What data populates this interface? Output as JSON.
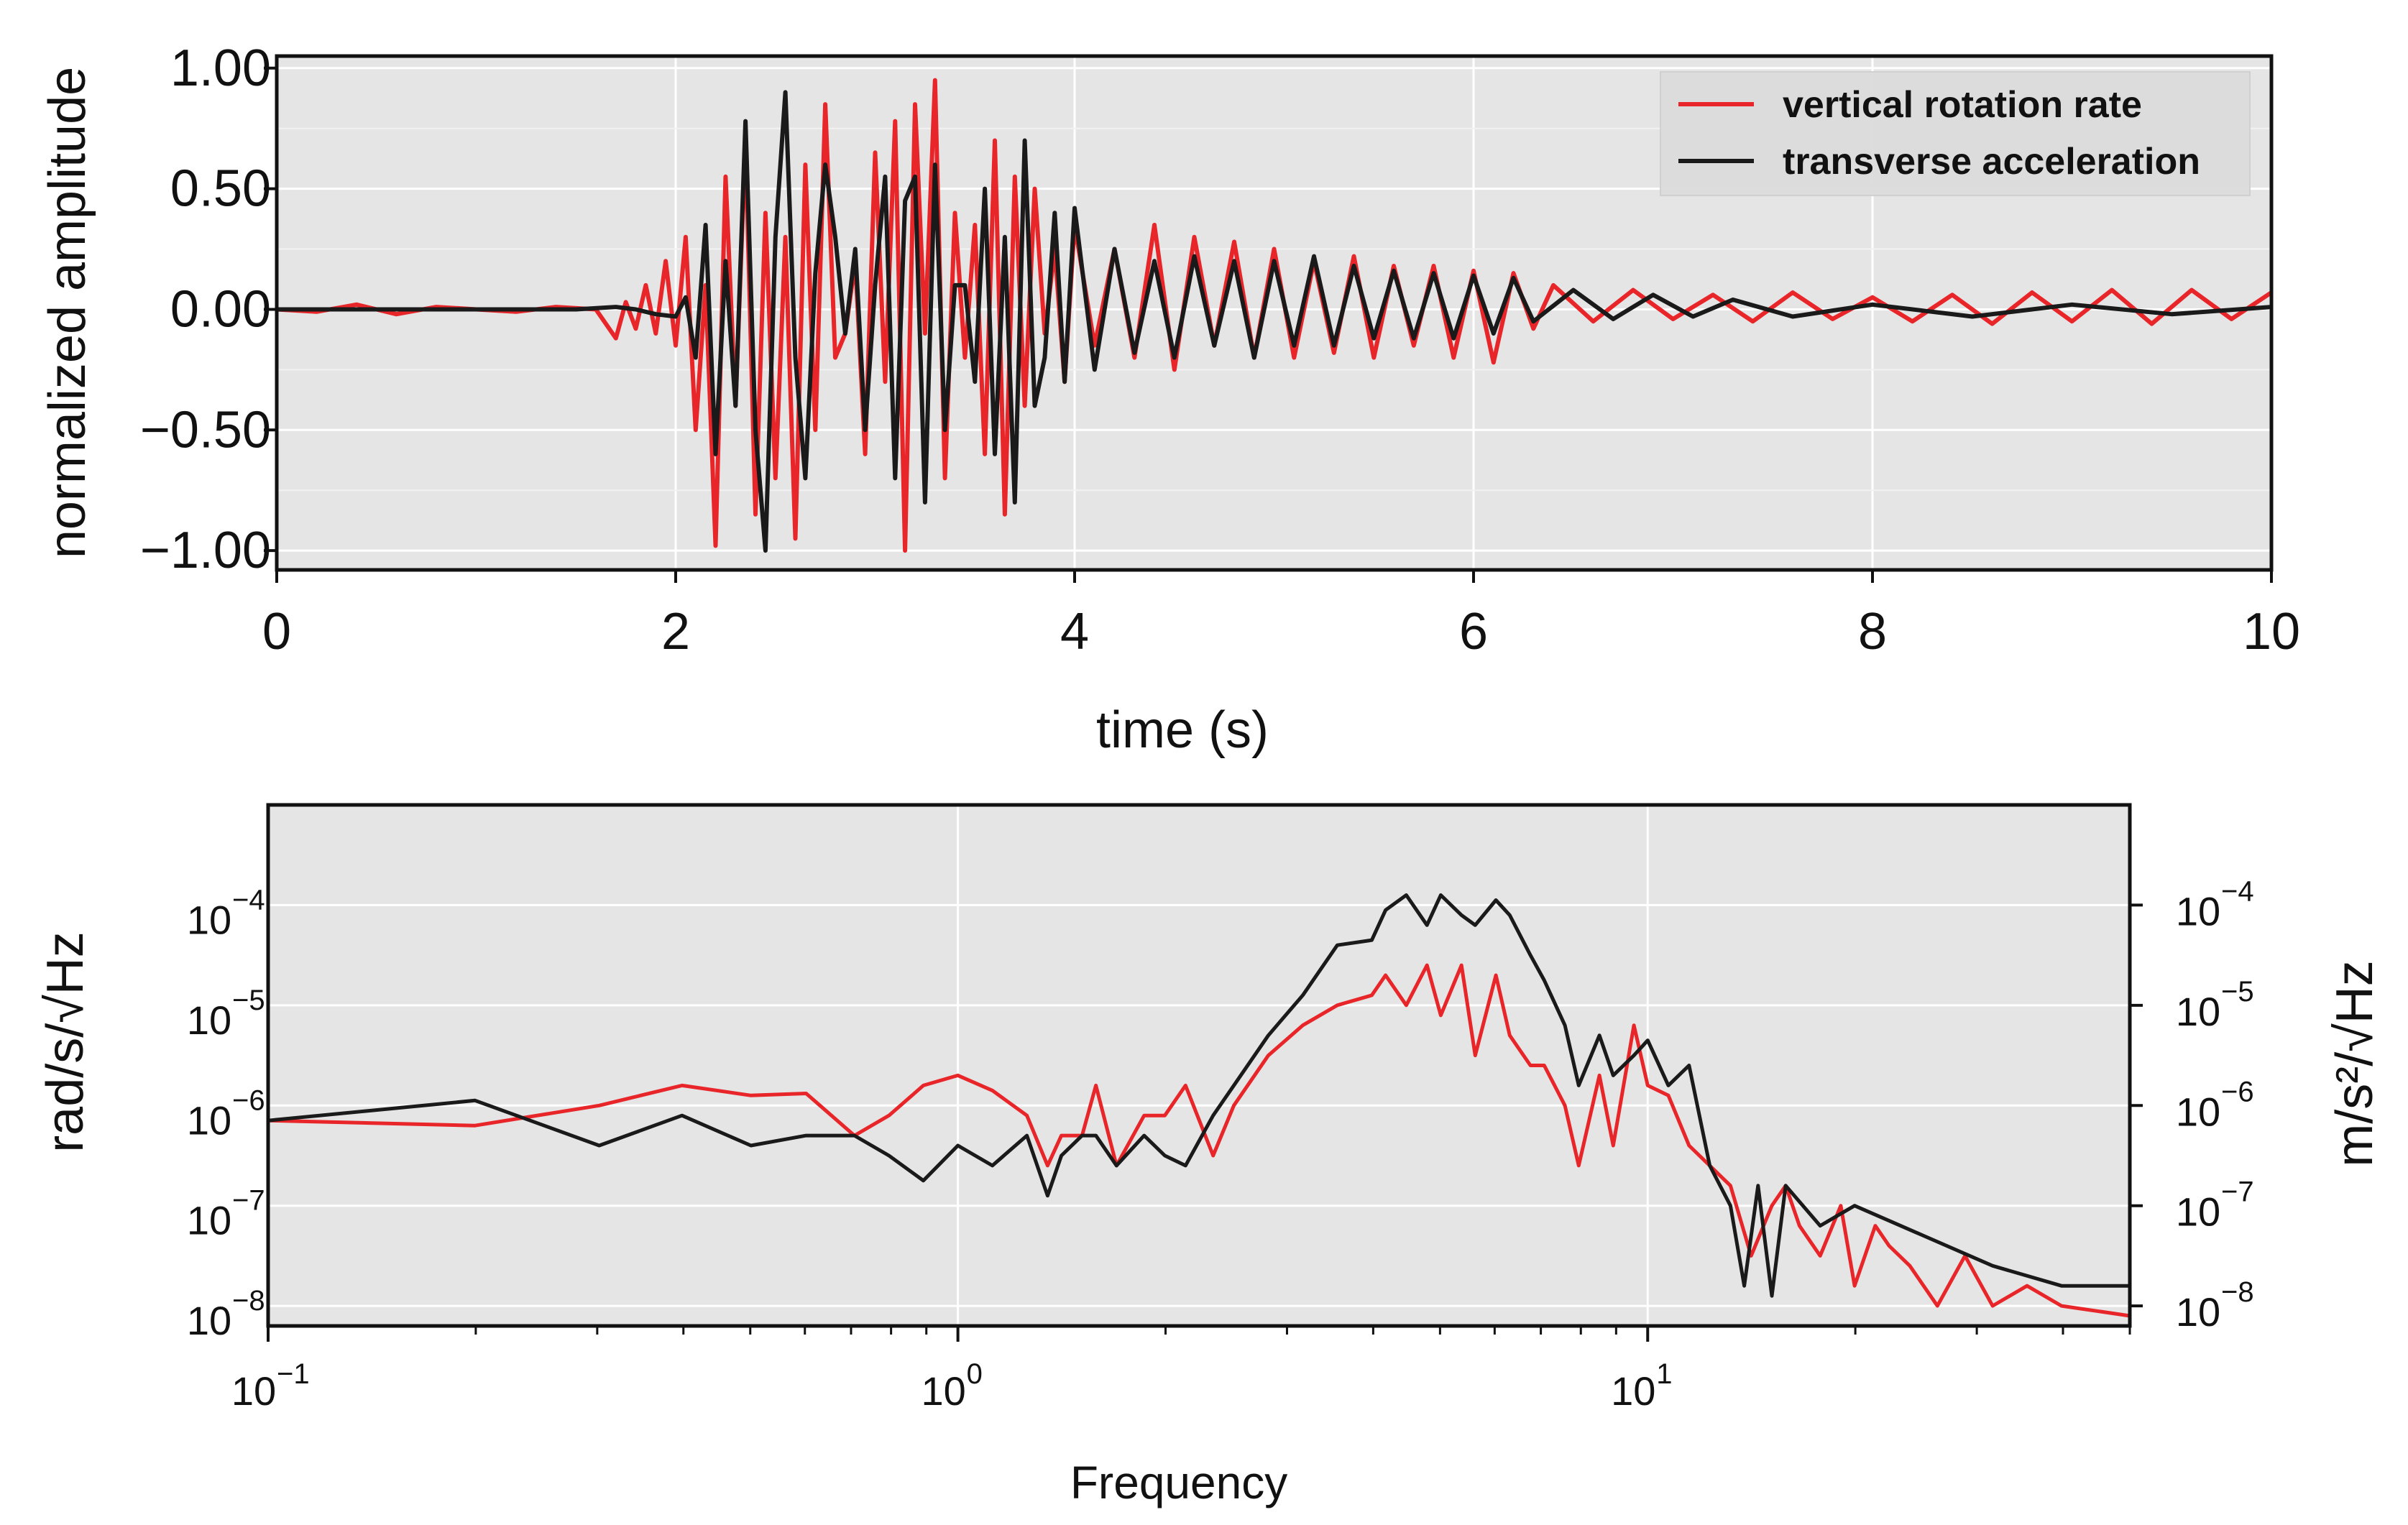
{
  "chart_data": [
    {
      "type": "line",
      "title": "",
      "xlabel": "time (s)",
      "ylabel": "normalized amplitude",
      "xlim": [
        0,
        10
      ],
      "ylim": [
        -1.08,
        1.05
      ],
      "grid": true,
      "xticks": [
        0,
        2,
        4,
        6,
        8,
        10
      ],
      "xtick_labels": [
        "0",
        "2",
        "4",
        "6",
        "8",
        "10"
      ],
      "yticks": [
        1.0,
        0.5,
        0.0,
        -0.5,
        -1.0
      ],
      "ytick_labels": [
        "1.00",
        "0.50",
        "0.00",
        "−0.50",
        "−1.00"
      ],
      "legend": {
        "placement": "top-right",
        "entries": [
          "vertical rotation rate",
          "transverse acceleration"
        ]
      },
      "series": [
        {
          "name": "vertical rotation rate",
          "color": "#e8262a",
          "x": [
            0,
            0.2,
            0.4,
            0.6,
            0.8,
            1.0,
            1.2,
            1.4,
            1.6,
            1.7,
            1.75,
            1.8,
            1.85,
            1.9,
            1.95,
            2.0,
            2.05,
            2.1,
            2.15,
            2.2,
            2.25,
            2.3,
            2.35,
            2.4,
            2.45,
            2.5,
            2.55,
            2.6,
            2.65,
            2.7,
            2.75,
            2.8,
            2.85,
            2.9,
            2.95,
            3.0,
            3.05,
            3.1,
            3.15,
            3.2,
            3.25,
            3.3,
            3.35,
            3.4,
            3.45,
            3.5,
            3.55,
            3.6,
            3.65,
            3.7,
            3.75,
            3.8,
            3.85,
            3.9,
            3.95,
            4.0,
            4.1,
            4.2,
            4.3,
            4.4,
            4.5,
            4.6,
            4.7,
            4.8,
            4.9,
            5.0,
            5.1,
            5.2,
            5.3,
            5.4,
            5.5,
            5.6,
            5.7,
            5.8,
            5.9,
            6.0,
            6.1,
            6.2,
            6.3,
            6.4,
            6.6,
            6.8,
            7.0,
            7.2,
            7.4,
            7.6,
            7.8,
            8.0,
            8.2,
            8.4,
            8.6,
            8.8,
            9.0,
            9.2,
            9.4,
            9.6,
            9.8,
            10.0
          ],
          "y": [
            0.0,
            -0.01,
            0.02,
            -0.02,
            0.01,
            0.0,
            -0.01,
            0.01,
            0.0,
            -0.12,
            0.03,
            -0.08,
            0.1,
            -0.1,
            0.2,
            -0.15,
            0.3,
            -0.5,
            0.1,
            -0.98,
            0.55,
            -0.4,
            0.7,
            -0.85,
            0.4,
            -0.7,
            0.3,
            -0.95,
            0.6,
            -0.5,
            0.85,
            -0.2,
            -0.1,
            0.2,
            -0.6,
            0.65,
            -0.3,
            0.78,
            -1.0,
            0.85,
            -0.1,
            0.95,
            -0.7,
            0.4,
            -0.2,
            0.35,
            -0.6,
            0.7,
            -0.85,
            0.55,
            -0.4,
            0.5,
            -0.1,
            0.25,
            -0.3,
            0.35,
            -0.15,
            0.25,
            -0.2,
            0.35,
            -0.25,
            0.3,
            -0.15,
            0.28,
            -0.2,
            0.25,
            -0.2,
            0.2,
            -0.18,
            0.22,
            -0.2,
            0.18,
            -0.15,
            0.18,
            -0.2,
            0.16,
            -0.22,
            0.15,
            -0.08,
            0.1,
            -0.05,
            0.08,
            -0.04,
            0.06,
            -0.05,
            0.07,
            -0.04,
            0.05,
            -0.05,
            0.06,
            -0.06,
            0.07,
            -0.05,
            0.08,
            -0.06,
            0.08,
            -0.04,
            0.07
          ]
        },
        {
          "name": "transverse acceleration",
          "color": "#1a1a1a",
          "x": [
            0,
            0.5,
            1.0,
            1.5,
            1.7,
            1.8,
            1.9,
            2.0,
            2.05,
            2.1,
            2.15,
            2.2,
            2.25,
            2.3,
            2.35,
            2.4,
            2.45,
            2.5,
            2.55,
            2.6,
            2.65,
            2.7,
            2.75,
            2.8,
            2.85,
            2.9,
            2.95,
            3.0,
            3.05,
            3.1,
            3.15,
            3.2,
            3.25,
            3.3,
            3.35,
            3.4,
            3.45,
            3.5,
            3.55,
            3.6,
            3.65,
            3.7,
            3.75,
            3.8,
            3.85,
            3.9,
            3.95,
            4.0,
            4.1,
            4.2,
            4.3,
            4.4,
            4.5,
            4.6,
            4.7,
            4.8,
            4.9,
            5.0,
            5.1,
            5.2,
            5.3,
            5.4,
            5.5,
            5.6,
            5.7,
            5.8,
            5.9,
            6.0,
            6.1,
            6.2,
            6.3,
            6.5,
            6.7,
            6.9,
            7.1,
            7.3,
            7.6,
            8.0,
            8.5,
            9.0,
            9.5,
            10.0
          ],
          "y": [
            0.0,
            0.0,
            0.0,
            0.0,
            0.01,
            0.0,
            -0.02,
            -0.03,
            0.05,
            -0.2,
            0.35,
            -0.6,
            0.2,
            -0.4,
            0.78,
            -0.5,
            -1.0,
            0.3,
            0.9,
            -0.2,
            -0.7,
            0.15,
            0.6,
            0.3,
            -0.1,
            0.25,
            -0.5,
            0.1,
            0.55,
            -0.7,
            0.45,
            0.55,
            -0.8,
            0.6,
            -0.5,
            0.1,
            0.1,
            -0.3,
            0.5,
            -0.6,
            0.3,
            -0.8,
            0.7,
            -0.4,
            -0.2,
            0.4,
            -0.3,
            0.42,
            -0.25,
            0.25,
            -0.18,
            0.2,
            -0.2,
            0.22,
            -0.15,
            0.2,
            -0.2,
            0.2,
            -0.15,
            0.22,
            -0.15,
            0.18,
            -0.12,
            0.16,
            -0.12,
            0.15,
            -0.12,
            0.14,
            -0.1,
            0.13,
            -0.05,
            0.08,
            -0.04,
            0.06,
            -0.03,
            0.04,
            -0.03,
            0.02,
            -0.03,
            0.02,
            -0.02,
            0.01
          ]
        }
      ]
    },
    {
      "type": "line",
      "title": "",
      "xlabel": "Frequency",
      "ylabel": "rad/s/√Hz",
      "ylabel_right": "m/s²/√Hz",
      "xscale": "log",
      "yscale": "log",
      "xlim": [
        0.1,
        50
      ],
      "ylim_exp": [
        -8.2,
        -3.0
      ],
      "grid": true,
      "xtick_labels": [
        {
          "base": "10",
          "exp": "−1"
        },
        {
          "base": "10",
          "exp": "0"
        },
        {
          "base": "10",
          "exp": "1"
        }
      ],
      "ytick_labels": [
        {
          "base": "10",
          "exp": "−4"
        },
        {
          "base": "10",
          "exp": "−5"
        },
        {
          "base": "10",
          "exp": "−6"
        },
        {
          "base": "10",
          "exp": "−7"
        },
        {
          "base": "10",
          "exp": "−8"
        }
      ],
      "series": [
        {
          "name": "vertical rotation rate",
          "color": "#e8262a",
          "log10_x": [
            -1.0,
            -0.7,
            -0.52,
            -0.4,
            -0.3,
            -0.22,
            -0.15,
            -0.1,
            -0.05,
            0.0,
            0.05,
            0.1,
            0.13,
            0.15,
            0.18,
            0.2,
            0.23,
            0.27,
            0.3,
            0.33,
            0.37,
            0.4,
            0.45,
            0.5,
            0.55,
            0.6,
            0.62,
            0.65,
            0.68,
            0.7,
            0.73,
            0.75,
            0.78,
            0.8,
            0.83,
            0.85,
            0.88,
            0.9,
            0.93,
            0.95,
            0.98,
            1.0,
            1.03,
            1.06,
            1.09,
            1.12,
            1.15,
            1.18,
            1.2,
            1.22,
            1.25,
            1.28,
            1.3,
            1.33,
            1.35,
            1.38,
            1.42,
            1.46,
            1.5,
            1.55,
            1.6,
            1.7
          ],
          "log10_y": [
            -6.15,
            -6.2,
            -6.0,
            -5.8,
            -5.9,
            -5.88,
            -6.3,
            -6.1,
            -5.8,
            -5.7,
            -5.85,
            -6.1,
            -6.6,
            -6.3,
            -6.3,
            -5.8,
            -6.6,
            -6.1,
            -6.1,
            -5.8,
            -6.5,
            -6.0,
            -5.5,
            -5.2,
            -5.0,
            -4.9,
            -4.7,
            -5.0,
            -4.6,
            -5.1,
            -4.6,
            -5.5,
            -4.7,
            -5.3,
            -5.6,
            -5.6,
            -6.0,
            -6.6,
            -5.7,
            -6.4,
            -5.2,
            -5.8,
            -5.9,
            -6.4,
            -6.6,
            -6.8,
            -7.5,
            -7.0,
            -6.8,
            -7.2,
            -7.5,
            -7.0,
            -7.8,
            -7.2,
            -7.4,
            -7.6,
            -8.0,
            -7.5,
            -8.0,
            -7.8,
            -8.0,
            -8.1
          ]
        },
        {
          "name": "transverse acceleration",
          "color": "#1a1a1a",
          "log10_x": [
            -1.0,
            -0.7,
            -0.52,
            -0.4,
            -0.3,
            -0.22,
            -0.15,
            -0.1,
            -0.05,
            0.0,
            0.05,
            0.1,
            0.13,
            0.15,
            0.18,
            0.2,
            0.23,
            0.27,
            0.3,
            0.33,
            0.37,
            0.4,
            0.45,
            0.5,
            0.55,
            0.6,
            0.62,
            0.65,
            0.68,
            0.7,
            0.73,
            0.75,
            0.78,
            0.8,
            0.83,
            0.85,
            0.88,
            0.9,
            0.93,
            0.95,
            0.98,
            1.0,
            1.03,
            1.06,
            1.09,
            1.12,
            1.14,
            1.16,
            1.18,
            1.2,
            1.25,
            1.3,
            1.4,
            1.5,
            1.6,
            1.7
          ],
          "log10_y": [
            -6.15,
            -5.95,
            -6.4,
            -6.1,
            -6.4,
            -6.3,
            -6.3,
            -6.5,
            -6.75,
            -6.4,
            -6.6,
            -6.3,
            -6.9,
            -6.5,
            -6.3,
            -6.3,
            -6.6,
            -6.3,
            -6.5,
            -6.6,
            -6.1,
            -5.8,
            -5.3,
            -4.9,
            -4.4,
            -4.35,
            -4.05,
            -3.9,
            -4.2,
            -3.9,
            -4.1,
            -4.2,
            -3.95,
            -4.1,
            -4.5,
            -4.75,
            -5.2,
            -5.8,
            -5.3,
            -5.7,
            -5.5,
            -5.35,
            -5.8,
            -5.6,
            -6.6,
            -7.0,
            -7.8,
            -6.8,
            -7.9,
            -6.8,
            -7.2,
            -7.0,
            -7.3,
            -7.6,
            -7.8,
            -7.8
          ]
        }
      ]
    }
  ]
}
